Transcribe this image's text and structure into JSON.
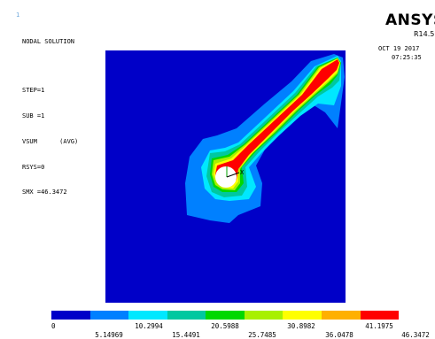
{
  "window_index": "1",
  "header": {
    "title": "NODAL SOLUTION",
    "lines": [
      "STEP=1",
      "SUB =1",
      "VSUM      (AVG)",
      "RSYS=0",
      "SMX =46.3472"
    ]
  },
  "brand": "ANSYS",
  "release": "R14.5",
  "date": "OCT 19 2017",
  "time": "07:25:35",
  "axis_label": "X",
  "legend": {
    "colors": [
      "#0000c8",
      "#0080ff",
      "#00e8ff",
      "#00c8a0",
      "#00d800",
      "#a8f000",
      "#ffff00",
      "#ffb000",
      "#ff0000"
    ],
    "upper_ticks": [
      "0",
      "10.2994",
      "20.5988",
      "30.8982",
      "41.1975"
    ],
    "lower_ticks": [
      "5.14969",
      "15.4491",
      "25.7485",
      "36.0478",
      "46.3472"
    ]
  },
  "contour": {
    "background_color": "#0000c8",
    "hole_color": "#ffffff",
    "levels_color": [
      "#0080ff",
      "#00e8ff",
      "#00c8a0",
      "#00d800",
      "#a8f000",
      "#ffff00",
      "#ff0000"
    ]
  }
}
